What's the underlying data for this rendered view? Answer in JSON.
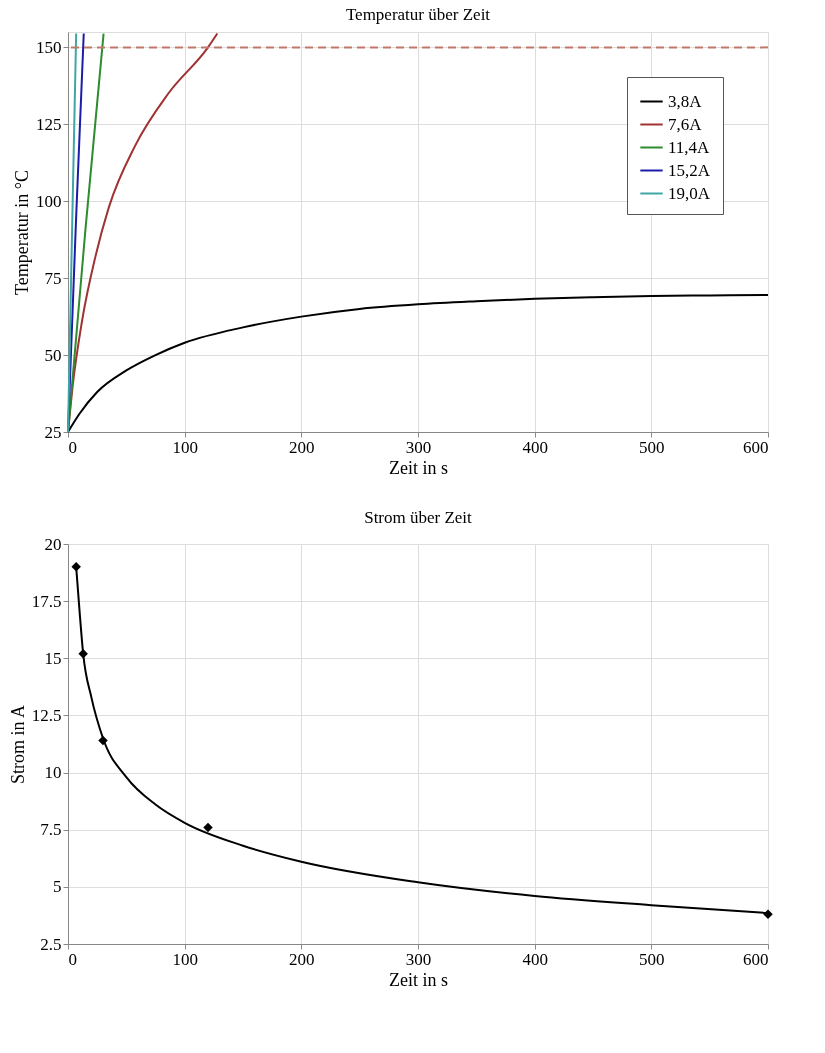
{
  "chart_data": [
    {
      "type": "line",
      "title": "Temperatur über Zeit",
      "xlabel": "Zeit in s",
      "ylabel": "Temperatur in °C",
      "xlim": [
        0,
        600
      ],
      "xticks": [
        0,
        100,
        200,
        300,
        400,
        500,
        600
      ],
      "ylim": [
        25,
        155
      ],
      "yticks": [
        25,
        50,
        75,
        100,
        125,
        150
      ],
      "grid": true,
      "legend": "top right",
      "series": [
        {
          "name": "3,8A",
          "color": "#000000",
          "x": [
            0,
            10,
            25,
            50,
            75,
            100,
            150,
            200,
            250,
            300,
            350,
            400,
            450,
            500,
            550,
            600
          ],
          "values": [
            25,
            31,
            38,
            45,
            50,
            54,
            59,
            62.5,
            65,
            66.5,
            67.5,
            68.3,
            68.8,
            69.2,
            69.4,
            69.5
          ]
        },
        {
          "name": "7,6A",
          "color": "#a03232",
          "x": [
            0,
            3.7,
            12,
            23.5,
            35,
            57.5,
            86,
            120,
            128
          ],
          "values": [
            25,
            39,
            61,
            82,
            98,
            118,
            135,
            150,
            154.5
          ]
        },
        {
          "name": "11,4A",
          "color": "#2e8b2e",
          "x": [
            0,
            15,
            30.5
          ],
          "values": [
            25,
            91,
            154.5
          ]
        },
        {
          "name": "15,2A",
          "color": "#1c1ca8",
          "x": [
            0,
            7,
            13.5
          ],
          "values": [
            25,
            95,
            154.5
          ]
        },
        {
          "name": "19,0A",
          "color": "#3fa6a6",
          "x": [
            0,
            4,
            7
          ],
          "values": [
            25,
            100,
            154.5
          ]
        }
      ],
      "ref_lines": [
        {
          "axis": "y",
          "value": 150,
          "color": "#c07868",
          "line_style": "dashed"
        }
      ]
    },
    {
      "type": "scatter",
      "title": "Strom über Zeit",
      "xlabel": "Zeit in s",
      "ylabel": "Strom in A",
      "xlim": [
        0,
        600
      ],
      "xticks": [
        0,
        100,
        200,
        300,
        400,
        500,
        600
      ],
      "ylim": [
        2.5,
        20
      ],
      "yticks": [
        2.5,
        5,
        7.5,
        10,
        12.5,
        15,
        17.5,
        20
      ],
      "grid": true,
      "series": [
        {
          "color": "#000000",
          "marker": "diamond",
          "x": [
            7,
            13,
            30,
            120,
            600
          ],
          "values": [
            19,
            15.2,
            11.4,
            7.6,
            3.8
          ]
        },
        {
          "type": "line",
          "color": "#000000",
          "x": [
            7,
            10,
            13,
            20,
            30,
            50,
            75,
            100,
            150,
            200,
            300,
            400,
            500,
            600
          ],
          "values": [
            19,
            17,
            15.2,
            13.3,
            11.5,
            9.8,
            8.6,
            7.8,
            6.8,
            6.1,
            5.2,
            4.6,
            4.2,
            3.85
          ]
        }
      ]
    }
  ]
}
